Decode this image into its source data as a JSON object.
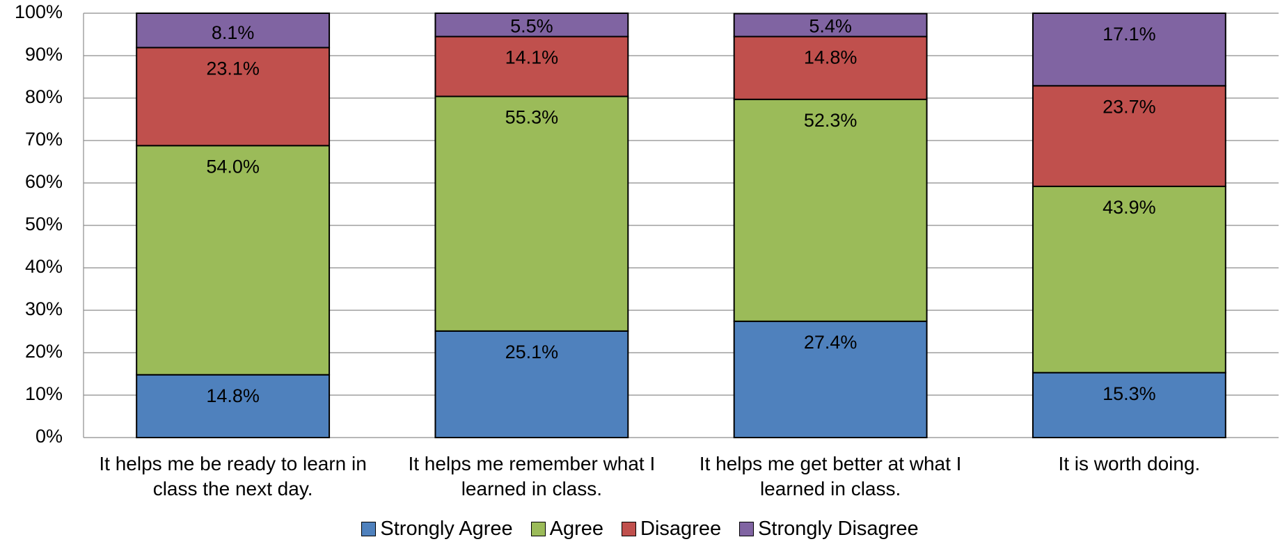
{
  "chart_data": {
    "type": "stacked_bar",
    "categories": [
      "It helps me be ready to learn in class the next day.",
      "It helps me remember what I learned in class.",
      "It helps me get better at what I learned in class.",
      "It is worth doing."
    ],
    "series": [
      {
        "name": "Strongly Agree",
        "color": "#4f81bd",
        "values": [
          14.8,
          25.1,
          27.4,
          15.3
        ],
        "value_labels": [
          "14.8%",
          "25.1%",
          "27.4%",
          "15.3%"
        ]
      },
      {
        "name": "Agree",
        "color": "#9bbb59",
        "values": [
          54.0,
          55.3,
          52.3,
          43.9
        ],
        "value_labels": [
          "54.0%",
          "55.3%",
          "52.3%",
          "43.9%"
        ]
      },
      {
        "name": "Disagree",
        "color": "#c0504d",
        "values": [
          23.1,
          14.1,
          14.8,
          23.7
        ],
        "value_labels": [
          "23.1%",
          "14.1%",
          "14.8%",
          "23.7%"
        ]
      },
      {
        "name": "Strongly Disagree",
        "color": "#8064a2",
        "values": [
          8.1,
          5.5,
          5.4,
          17.1
        ],
        "value_labels": [
          "8.1%",
          "5.5%",
          "5.4%",
          "17.1%"
        ]
      }
    ],
    "ylim": [
      0,
      100
    ],
    "yticks": [
      {
        "value": 0,
        "label": "0%"
      },
      {
        "value": 10,
        "label": "10%"
      },
      {
        "value": 20,
        "label": "20%"
      },
      {
        "value": 30,
        "label": "30%"
      },
      {
        "value": 40,
        "label": "40%"
      },
      {
        "value": 50,
        "label": "50%"
      },
      {
        "value": 60,
        "label": "60%"
      },
      {
        "value": 70,
        "label": "70%"
      },
      {
        "value": 80,
        "label": "80%"
      },
      {
        "value": 90,
        "label": "90%"
      },
      {
        "value": 100,
        "label": "100%"
      }
    ],
    "grid": true,
    "legend": "bottom"
  }
}
